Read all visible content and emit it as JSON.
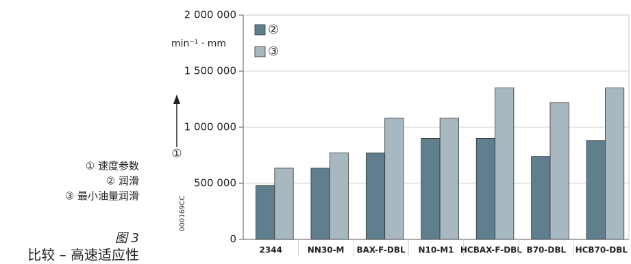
{
  "chart_data": {
    "type": "bar",
    "ylabel": "min⁻¹ · mm",
    "axis_marker": "①",
    "code": "000169CC",
    "categories": [
      "2344",
      "NN30-M",
      "BAX-F-DBL",
      "N10-M1",
      "HCBAX-F-DBL",
      "B70-DBL",
      "HCB70-DBL"
    ],
    "series": [
      {
        "name": "②",
        "color": "#5f7f8e",
        "values": [
          480000,
          635000,
          770000,
          900000,
          900000,
          740000,
          880000
        ]
      },
      {
        "name": "③",
        "color": "#a8b8c0",
        "values": [
          635000,
          770000,
          1080000,
          1080000,
          1350000,
          1220000,
          1350000
        ]
      }
    ],
    "ylim": [
      0,
      2000000
    ],
    "yticks": [
      0,
      {
        "value": 500000,
        "label": "500 000"
      },
      {
        "value": 1000000,
        "label": "1 000 000"
      },
      {
        "value": 1500000,
        "label": "1 500 000"
      },
      {
        "value": 2000000,
        "label": "2 000 000"
      }
    ],
    "grid": true
  },
  "legend_notes": [
    "① 速度参数",
    "② 润滑",
    "③ 最小油量润滑"
  ],
  "figure": {
    "number": "图 3",
    "caption": "比较 – 高速适应性"
  }
}
